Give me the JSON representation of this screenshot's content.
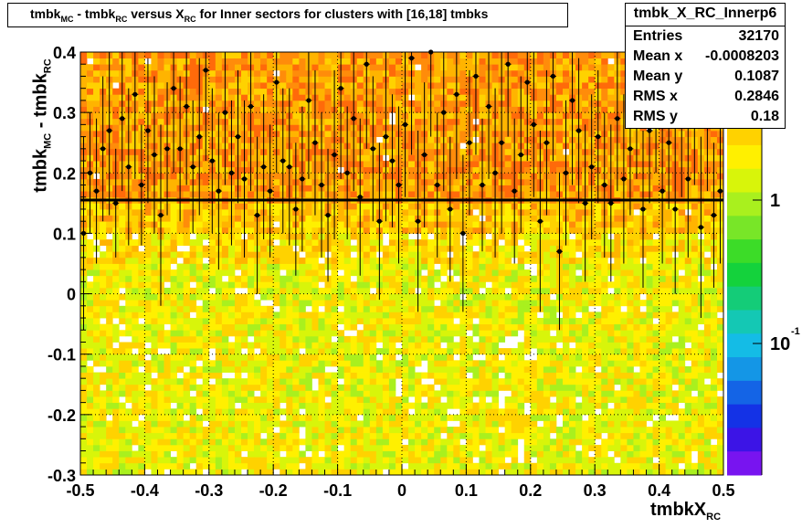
{
  "title": {
    "parts": [
      "tmbk",
      "MC",
      " - tmbk",
      "RC",
      " versus X",
      "RC",
      " for Inner sectors for clusters with [16,18] tmbks"
    ]
  },
  "stats": {
    "name": "tmbk_X_RC_Innerp6",
    "rows": [
      {
        "label": "Entries",
        "value": "32170"
      },
      {
        "label": "Mean x",
        "value": "-0.0008203"
      },
      {
        "label": "Mean y",
        "value": "0.1087"
      },
      {
        "label": "RMS x",
        "value": "0.2846"
      },
      {
        "label": "RMS y",
        "value": "0.18"
      }
    ]
  },
  "axes": {
    "ytitle_main": "tmbk",
    "ytitle_sub1": "MC",
    "ytitle_mid": " - tmbk",
    "ytitle_sub2": "RC",
    "xtitle_main": "tmbkX",
    "xtitle_sub": "RC"
  },
  "palette_labels": [
    "1",
    "10",
    "-1"
  ],
  "chart_data": {
    "type": "heatmap",
    "title": "tmbk_MC - tmbk_RC versus X_RC for Inner sectors for clusters with [16,18] tmbks",
    "xlabel": "tmbkX_RC",
    "ylabel": "tmbk_MC - tmbk_RC",
    "xlim": [
      -0.5,
      0.5
    ],
    "ylim": [
      -0.3,
      0.4
    ],
    "xticks": [
      "-0.5",
      "-0.4",
      "-0.3",
      "-0.2",
      "-0.1",
      "0",
      "0.1",
      "0.2",
      "0.3",
      "0.4",
      "0.5"
    ],
    "yticks": [
      "-0.3",
      "-0.2",
      "-0.1",
      "0",
      "0.1",
      "0.2",
      "0.3",
      "0.4"
    ],
    "z_scale": "log",
    "grid": true,
    "profile_mean_y": 0.155,
    "profile_points": [
      [
        -0.495,
        0.1,
        0.16
      ],
      [
        -0.485,
        0.2,
        0.1
      ],
      [
        -0.475,
        0.17,
        0.12
      ],
      [
        -0.465,
        0.24,
        0.12
      ],
      [
        -0.455,
        0.27,
        0.14
      ],
      [
        -0.445,
        0.15,
        0.09
      ],
      [
        -0.435,
        0.29,
        0.12
      ],
      [
        -0.425,
        0.21,
        0.13
      ],
      [
        -0.415,
        0.33,
        0.14
      ],
      [
        -0.405,
        0.18,
        0.1
      ],
      [
        -0.395,
        0.27,
        0.12
      ],
      [
        -0.385,
        0.23,
        0.13
      ],
      [
        -0.375,
        0.13,
        0.15
      ],
      [
        -0.365,
        0.24,
        0.11
      ],
      [
        -0.355,
        0.34,
        0.14
      ],
      [
        -0.345,
        0.24,
        0.12
      ],
      [
        -0.335,
        0.31,
        0.13
      ],
      [
        -0.325,
        0.21,
        0.11
      ],
      [
        -0.315,
        0.26,
        0.13
      ],
      [
        -0.305,
        0.37,
        0.15
      ],
      [
        -0.295,
        0.22,
        0.12
      ],
      [
        -0.285,
        0.17,
        0.13
      ],
      [
        -0.275,
        0.3,
        0.12
      ],
      [
        -0.265,
        0.2,
        0.12
      ],
      [
        -0.255,
        0.26,
        0.11
      ],
      [
        -0.245,
        0.19,
        0.13
      ],
      [
        -0.235,
        0.31,
        0.14
      ],
      [
        -0.225,
        0.13,
        0.13
      ],
      [
        -0.215,
        0.21,
        0.12
      ],
      [
        -0.205,
        0.17,
        0.11
      ],
      [
        -0.195,
        0.35,
        0.15
      ],
      [
        -0.185,
        0.22,
        0.12
      ],
      [
        -0.175,
        0.21,
        0.13
      ],
      [
        -0.165,
        0.14,
        0.11
      ],
      [
        -0.155,
        0.19,
        0.12
      ],
      [
        -0.145,
        0.32,
        0.13
      ],
      [
        -0.135,
        0.25,
        0.12
      ],
      [
        -0.125,
        0.18,
        0.12
      ],
      [
        -0.115,
        0.13,
        0.11
      ],
      [
        -0.105,
        0.23,
        0.14
      ],
      [
        -0.095,
        0.34,
        0.15
      ],
      [
        -0.085,
        0.2,
        0.11
      ],
      [
        -0.075,
        0.29,
        0.12
      ],
      [
        -0.065,
        0.16,
        0.13
      ],
      [
        -0.055,
        0.38,
        0.14
      ],
      [
        -0.045,
        0.24,
        0.12
      ],
      [
        -0.035,
        0.12,
        0.13
      ],
      [
        -0.025,
        0.26,
        0.14
      ],
      [
        -0.015,
        0.22,
        0.11
      ],
      [
        -0.005,
        0.18,
        0.13
      ],
      [
        0.005,
        0.28,
        0.12
      ],
      [
        0.015,
        0.39,
        0.16
      ],
      [
        0.025,
        0.12,
        0.15
      ],
      [
        0.035,
        0.23,
        0.12
      ],
      [
        0.045,
        0.4,
        0.14
      ],
      [
        0.055,
        0.18,
        0.12
      ],
      [
        0.065,
        0.3,
        0.13
      ],
      [
        0.075,
        0.14,
        0.12
      ],
      [
        0.085,
        0.33,
        0.14
      ],
      [
        0.095,
        0.1,
        0.13
      ],
      [
        0.105,
        0.25,
        0.12
      ],
      [
        0.115,
        0.36,
        0.13
      ],
      [
        0.125,
        0.18,
        0.11
      ],
      [
        0.135,
        0.31,
        0.12
      ],
      [
        0.145,
        0.2,
        0.14
      ],
      [
        0.155,
        0.25,
        0.15
      ],
      [
        0.165,
        0.38,
        0.12
      ],
      [
        0.175,
        0.17,
        0.12
      ],
      [
        0.185,
        0.23,
        0.13
      ],
      [
        0.195,
        0.35,
        0.13
      ],
      [
        0.205,
        0.28,
        0.12
      ],
      [
        0.215,
        0.12,
        0.15
      ],
      [
        0.225,
        0.25,
        0.12
      ],
      [
        0.235,
        0.36,
        0.14
      ],
      [
        0.245,
        0.07,
        0.13
      ],
      [
        0.255,
        0.2,
        0.12
      ],
      [
        0.265,
        0.32,
        0.14
      ],
      [
        0.275,
        0.27,
        0.12
      ],
      [
        0.285,
        0.15,
        0.13
      ],
      [
        0.295,
        0.21,
        0.12
      ],
      [
        0.305,
        0.26,
        0.11
      ],
      [
        0.315,
        0.18,
        0.12
      ],
      [
        0.325,
        0.15,
        0.13
      ],
      [
        0.335,
        0.29,
        0.12
      ],
      [
        0.345,
        0.19,
        0.14
      ],
      [
        0.355,
        0.24,
        0.11
      ],
      [
        0.365,
        0.31,
        0.12
      ],
      [
        0.375,
        0.14,
        0.13
      ],
      [
        0.385,
        0.27,
        0.12
      ],
      [
        0.395,
        0.33,
        0.13
      ],
      [
        0.405,
        0.17,
        0.12
      ],
      [
        0.415,
        0.25,
        0.11
      ],
      [
        0.425,
        0.14,
        0.14
      ],
      [
        0.435,
        0.28,
        0.12
      ],
      [
        0.445,
        0.19,
        0.13
      ],
      [
        0.455,
        0.3,
        0.12
      ],
      [
        0.465,
        0.11,
        0.15
      ],
      [
        0.475,
        0.3,
        0.13
      ],
      [
        0.485,
        0.13,
        0.12
      ],
      [
        0.495,
        0.17,
        0.12
      ]
    ]
  }
}
